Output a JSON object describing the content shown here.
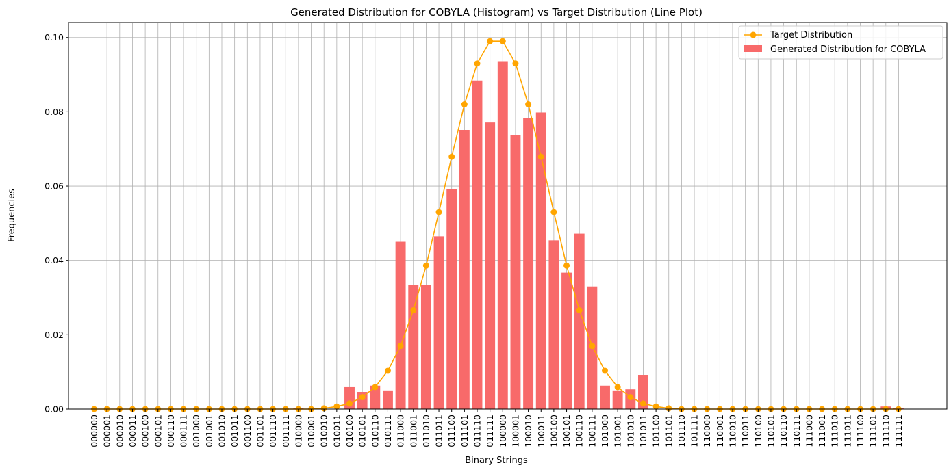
{
  "chart_data": {
    "type": "bar",
    "title": "Generated Distribution for COBYLA (Histogram) vs Target Distribution (Line Plot)",
    "xlabel": "Binary Strings",
    "ylabel": "Frequencies",
    "ylim": [
      0,
      0.104
    ],
    "yticks": [
      "0.00",
      "0.02",
      "0.04",
      "0.06",
      "0.08",
      "0.10"
    ],
    "ytick_values": [
      0,
      0.02,
      0.04,
      0.06,
      0.08,
      0.1
    ],
    "grid": true,
    "legend_position": "top-right",
    "categories": [
      "000000",
      "000001",
      "000010",
      "000011",
      "000100",
      "000101",
      "000110",
      "000111",
      "001000",
      "001001",
      "001010",
      "001011",
      "001100",
      "001101",
      "001110",
      "001111",
      "010000",
      "010001",
      "010010",
      "010011",
      "010100",
      "010101",
      "010110",
      "010111",
      "011000",
      "011001",
      "011010",
      "011011",
      "011100",
      "011101",
      "011110",
      "011111",
      "100000",
      "100001",
      "100010",
      "100011",
      "100100",
      "100101",
      "100110",
      "100111",
      "101000",
      "101001",
      "101010",
      "101011",
      "101100",
      "101101",
      "101110",
      "101111",
      "110000",
      "110001",
      "110010",
      "110011",
      "110100",
      "110101",
      "110110",
      "110111",
      "111000",
      "111001",
      "111010",
      "111011",
      "111100",
      "111101",
      "111110",
      "111111"
    ],
    "series": [
      {
        "name": "Generated Distribution for COBYLA",
        "kind": "bar",
        "color": "#f86a6a",
        "values": [
          0,
          0,
          0,
          0,
          0,
          0,
          0,
          0,
          0,
          0,
          0,
          0,
          0,
          0,
          0,
          0,
          0.0003,
          0,
          0,
          0,
          0.0059,
          0.0046,
          0.0063,
          0.005,
          0.045,
          0.0335,
          0.0335,
          0.0465,
          0.0592,
          0.0751,
          0.0884,
          0.0771,
          0.0936,
          0.0738,
          0.0784,
          0.0798,
          0.0454,
          0.0367,
          0.0472,
          0.033,
          0.0063,
          0.005,
          0.0053,
          0.0092,
          0,
          0,
          0,
          0,
          0,
          0,
          0,
          0,
          0,
          0,
          0,
          0,
          0,
          0,
          0,
          0,
          0,
          0,
          0.0007,
          0.0003
        ]
      },
      {
        "name": "Target Distribution",
        "kind": "line",
        "color": "#ffa500",
        "values": [
          0,
          0,
          0,
          0,
          0,
          0,
          0,
          0,
          0,
          0,
          0,
          0,
          0,
          0,
          0,
          0,
          0,
          0,
          0.0002,
          0.0007,
          0.0015,
          0.0032,
          0.0059,
          0.0103,
          0.017,
          0.0266,
          0.0386,
          0.053,
          0.0679,
          0.082,
          0.093,
          0.099,
          0.099,
          0.093,
          0.082,
          0.0679,
          0.053,
          0.0386,
          0.0266,
          0.017,
          0.0103,
          0.0059,
          0.0032,
          0.0015,
          0.0007,
          0.0002,
          0,
          0,
          0,
          0,
          0,
          0,
          0,
          0,
          0,
          0,
          0,
          0,
          0,
          0,
          0,
          0,
          0,
          0
        ]
      }
    ]
  }
}
